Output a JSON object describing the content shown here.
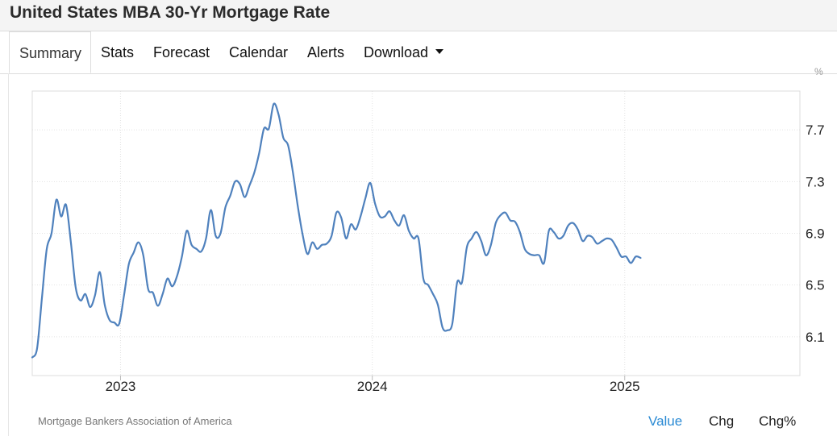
{
  "title": "United States MBA 30-Yr Mortgage Rate",
  "tabs": [
    {
      "label": "Summary",
      "active": true
    },
    {
      "label": "Stats"
    },
    {
      "label": "Forecast"
    },
    {
      "label": "Calendar"
    },
    {
      "label": "Alerts"
    },
    {
      "label": "Download",
      "dropdown": true
    }
  ],
  "source": "Mortgage Bankers Association of America",
  "modes": [
    {
      "label": "Value",
      "active": true
    },
    {
      "label": "Chg"
    },
    {
      "label": "Chg%"
    }
  ],
  "colors": {
    "line": "#4f81bd",
    "active_mode": "#2a8ad4"
  },
  "chart_data": {
    "type": "line",
    "title": "",
    "xlabel": "",
    "ylabel": "",
    "y_unit": "%",
    "x_tick_labels": [
      "2023",
      "2024",
      "2025"
    ],
    "y_ticks": [
      6.1,
      6.5,
      6.9,
      7.3,
      7.7
    ],
    "y_tick_labels": [
      "6.1",
      "6.5",
      "6.9",
      "7.3",
      "7.7"
    ],
    "xlim": [
      "2022-08-26",
      "2025-09-12"
    ],
    "ylim": [
      5.8,
      8.0
    ],
    "grid": true,
    "series": [
      {
        "values": [
          [
            "2022-08-26",
            5.94
          ],
          [
            "2022-09-02",
            6.01
          ],
          [
            "2022-09-09",
            6.4
          ],
          [
            "2022-09-16",
            6.78
          ],
          [
            "2022-09-23",
            6.9
          ],
          [
            "2022-09-30",
            7.16
          ],
          [
            "2022-10-07",
            7.03
          ],
          [
            "2022-10-14",
            7.12
          ],
          [
            "2022-10-21",
            6.83
          ],
          [
            "2022-10-28",
            6.48
          ],
          [
            "2022-11-04",
            6.38
          ],
          [
            "2022-11-11",
            6.43
          ],
          [
            "2022-11-18",
            6.33
          ],
          [
            "2022-11-25",
            6.42
          ],
          [
            "2022-12-02",
            6.6
          ],
          [
            "2022-12-09",
            6.35
          ],
          [
            "2022-12-16",
            6.23
          ],
          [
            "2022-12-23",
            6.21
          ],
          [
            "2022-12-30",
            6.2
          ],
          [
            "2023-01-06",
            6.42
          ],
          [
            "2023-01-13",
            6.66
          ],
          [
            "2023-01-20",
            6.75
          ],
          [
            "2023-01-27",
            6.83
          ],
          [
            "2023-02-03",
            6.73
          ],
          [
            "2023-02-10",
            6.47
          ],
          [
            "2023-02-17",
            6.44
          ],
          [
            "2023-02-24",
            6.34
          ],
          [
            "2023-03-03",
            6.43
          ],
          [
            "2023-03-10",
            6.55
          ],
          [
            "2023-03-17",
            6.49
          ],
          [
            "2023-03-24",
            6.57
          ],
          [
            "2023-03-31",
            6.72
          ],
          [
            "2023-04-07",
            6.92
          ],
          [
            "2023-04-14",
            6.81
          ],
          [
            "2023-04-21",
            6.78
          ],
          [
            "2023-04-28",
            6.76
          ],
          [
            "2023-05-05",
            6.86
          ],
          [
            "2023-05-12",
            7.08
          ],
          [
            "2023-05-19",
            6.88
          ],
          [
            "2023-05-26",
            6.9
          ],
          [
            "2023-06-02",
            7.1
          ],
          [
            "2023-06-09",
            7.19
          ],
          [
            "2023-06-16",
            7.3
          ],
          [
            "2023-06-23",
            7.28
          ],
          [
            "2023-06-30",
            7.18
          ],
          [
            "2023-07-07",
            7.27
          ],
          [
            "2023-07-14",
            7.37
          ],
          [
            "2023-07-21",
            7.52
          ],
          [
            "2023-07-28",
            7.71
          ],
          [
            "2023-08-04",
            7.71
          ],
          [
            "2023-08-11",
            7.9
          ],
          [
            "2023-08-18",
            7.82
          ],
          [
            "2023-08-25",
            7.64
          ],
          [
            "2023-09-01",
            7.58
          ],
          [
            "2023-09-08",
            7.37
          ],
          [
            "2023-09-15",
            7.11
          ],
          [
            "2023-09-22",
            6.89
          ],
          [
            "2023-09-29",
            6.74
          ],
          [
            "2023-10-06",
            6.83
          ],
          [
            "2023-10-13",
            6.78
          ],
          [
            "2023-10-20",
            6.81
          ],
          [
            "2023-10-27",
            6.82
          ],
          [
            "2023-11-03",
            6.88
          ],
          [
            "2023-11-10",
            7.06
          ],
          [
            "2023-11-17",
            7.02
          ],
          [
            "2023-11-24",
            6.86
          ],
          [
            "2023-12-01",
            6.97
          ],
          [
            "2023-12-08",
            6.93
          ],
          [
            "2023-12-15",
            7.03
          ],
          [
            "2023-12-22",
            7.17
          ],
          [
            "2023-12-29",
            7.29
          ],
          [
            "2024-01-05",
            7.13
          ],
          [
            "2024-01-12",
            7.03
          ],
          [
            "2024-01-19",
            7.03
          ],
          [
            "2024-01-26",
            7.07
          ],
          [
            "2024-02-02",
            7.0
          ],
          [
            "2024-02-09",
            6.96
          ],
          [
            "2024-02-16",
            7.04
          ],
          [
            "2024-02-23",
            6.92
          ],
          [
            "2024-03-01",
            6.86
          ],
          [
            "2024-03-08",
            6.86
          ],
          [
            "2024-03-15",
            6.55
          ],
          [
            "2024-03-22",
            6.5
          ],
          [
            "2024-03-29",
            6.43
          ],
          [
            "2024-04-05",
            6.35
          ],
          [
            "2024-04-12",
            6.17
          ],
          [
            "2024-04-19",
            6.15
          ],
          [
            "2024-04-26",
            6.2
          ],
          [
            "2024-05-03",
            6.52
          ],
          [
            "2024-05-10",
            6.52
          ],
          [
            "2024-05-17",
            6.79
          ],
          [
            "2024-05-24",
            6.86
          ],
          [
            "2024-05-31",
            6.91
          ],
          [
            "2024-06-07",
            6.84
          ],
          [
            "2024-06-14",
            6.73
          ],
          [
            "2024-06-21",
            6.81
          ],
          [
            "2024-06-28",
            6.98
          ],
          [
            "2024-07-05",
            7.04
          ],
          [
            "2024-07-12",
            7.06
          ],
          [
            "2024-07-19",
            7.0
          ],
          [
            "2024-07-26",
            6.99
          ],
          [
            "2024-08-02",
            6.91
          ],
          [
            "2024-08-09",
            6.78
          ],
          [
            "2024-08-16",
            6.74
          ],
          [
            "2024-08-23",
            6.73
          ],
          [
            "2024-08-30",
            6.73
          ],
          [
            "2024-09-06",
            6.67
          ],
          [
            "2024-09-13",
            6.92
          ],
          [
            "2024-09-20",
            6.91
          ],
          [
            "2024-09-27",
            6.86
          ],
          [
            "2024-10-04",
            6.88
          ],
          [
            "2024-10-11",
            6.96
          ],
          [
            "2024-10-18",
            6.98
          ],
          [
            "2024-10-25",
            6.93
          ],
          [
            "2024-11-01",
            6.84
          ],
          [
            "2024-11-08",
            6.88
          ],
          [
            "2024-11-15",
            6.87
          ],
          [
            "2024-11-22",
            6.82
          ],
          [
            "2024-11-29",
            6.84
          ],
          [
            "2024-12-06",
            6.86
          ],
          [
            "2024-12-13",
            6.85
          ],
          [
            "2024-12-20",
            6.79
          ],
          [
            "2024-12-27",
            6.72
          ],
          [
            "2025-01-03",
            6.72
          ],
          [
            "2025-01-10",
            6.67
          ],
          [
            "2025-01-17",
            6.72
          ],
          [
            "2025-01-24",
            6.71
          ]
        ]
      }
    ]
  }
}
